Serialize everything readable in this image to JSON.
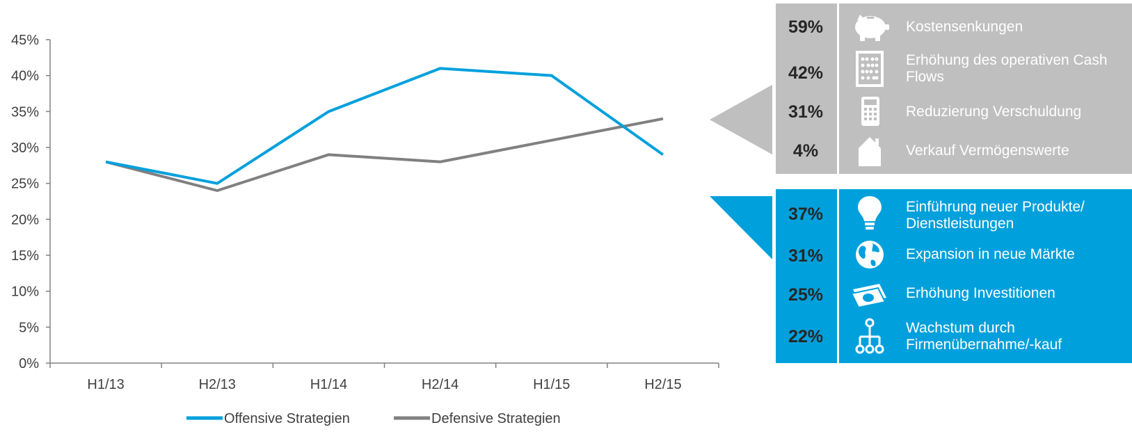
{
  "chart_data": {
    "type": "line",
    "categories": [
      "H1/13",
      "H2/13",
      "H1/14",
      "H2/14",
      "H1/15",
      "H2/15"
    ],
    "series": [
      {
        "name": "Offensive Strategien",
        "values": [
          28,
          25,
          35,
          41,
          40,
          29
        ],
        "color": "#00a0dc"
      },
      {
        "name": "Defensive Strategien",
        "values": [
          28,
          24,
          29,
          28,
          31,
          34
        ],
        "color": "#808080"
      }
    ],
    "yticks": [
      "0%",
      "5%",
      "10%",
      "15%",
      "20%",
      "25%",
      "30%",
      "35%",
      "40%",
      "45%"
    ],
    "ylim": [
      0,
      45
    ],
    "grid": false,
    "legend_position": "bottom"
  },
  "defensive_panel": {
    "color": "#bfbfbf",
    "items": [
      {
        "pct": "59%",
        "label": "Kostensenkungen",
        "icon": "piggy-bank-icon"
      },
      {
        "pct": "42%",
        "label": "Erhöhung des operativen Cash Flows",
        "icon": "abacus-icon"
      },
      {
        "pct": "31%",
        "label": "Reduzierung Verschuldung",
        "icon": "calculator-icon"
      },
      {
        "pct": "4%",
        "label": "Verkauf Vermögenswerte",
        "icon": "house-icon"
      }
    ]
  },
  "offensive_panel": {
    "color": "#00a0dc",
    "items": [
      {
        "pct": "37%",
        "label": "Einführung neuer Produkte/ Dienstleistungen",
        "icon": "lightbulb-icon"
      },
      {
        "pct": "31%",
        "label": "Expansion in neue Märkte",
        "icon": "globe-icon"
      },
      {
        "pct": "25%",
        "label": "Erhöhung Investitionen",
        "icon": "money-icon"
      },
      {
        "pct": "22%",
        "label": "Wachstum durch Firmenübernahme/-kauf",
        "icon": "org-chart-icon"
      }
    ]
  }
}
